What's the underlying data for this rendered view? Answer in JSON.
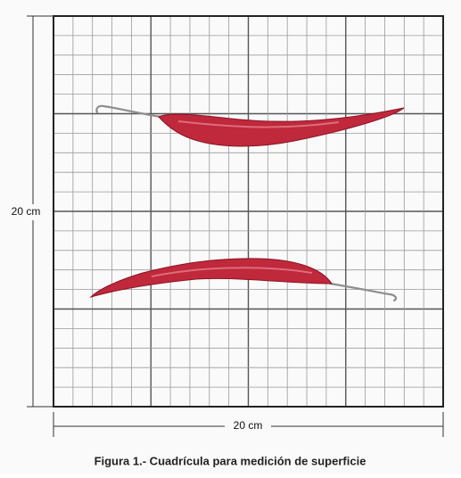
{
  "dimensions": {
    "height_label": "20 cm",
    "width_label": "20 cm"
  },
  "caption": "Figura 1.- Cuadrícula para medición de superficie"
}
